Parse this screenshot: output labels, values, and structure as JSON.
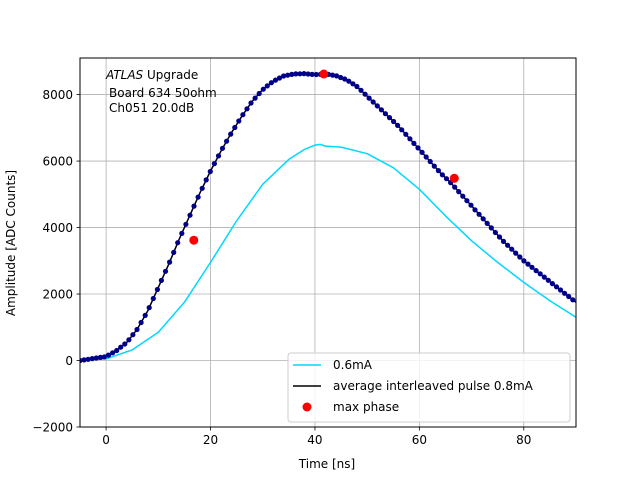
{
  "chart_data": {
    "type": "line",
    "xlabel": "Time [ns]",
    "ylabel": "Amplitude [ADC Counts]",
    "xlim": [
      -5,
      90
    ],
    "ylim": [
      -2000,
      9100
    ],
    "xticks": [
      0,
      20,
      40,
      60,
      80
    ],
    "yticks": [
      -2000,
      0,
      2000,
      4000,
      6000,
      8000
    ],
    "grid": true,
    "legend_position": "lower-right",
    "annotation": {
      "italic": "ATLAS",
      "line1_rest": " Upgrade",
      "line2": "Board 634 50ohm",
      "line3": "Ch051 20.0dB"
    },
    "series": [
      {
        "name": "0.6mA",
        "style": "line",
        "color": "#00d8ff",
        "x": [
          -5,
          0,
          5,
          10,
          15,
          20,
          25,
          30,
          35,
          38,
          40,
          41,
          42,
          45,
          50,
          55,
          60,
          65,
          70,
          75,
          80,
          85,
          90
        ],
        "y": [
          0,
          50,
          320,
          850,
          1750,
          2950,
          4200,
          5300,
          6050,
          6350,
          6480,
          6500,
          6450,
          6420,
          6220,
          5800,
          5150,
          4350,
          3600,
          2950,
          2350,
          1800,
          1300
        ]
      },
      {
        "name": "average interleaved pulse 0.8mA",
        "style": "line-with-markers",
        "color": "#000000",
        "marker_color": "#00008b",
        "x": [
          -5,
          0,
          2,
          4,
          6,
          8,
          10,
          12,
          14,
          16,
          18,
          20,
          22,
          24,
          26,
          28,
          30,
          32,
          34,
          36,
          38,
          40,
          42,
          44,
          46,
          48,
          50,
          52,
          54,
          56,
          58,
          60,
          62,
          64,
          66,
          68,
          70,
          72,
          74,
          76,
          78,
          80,
          82,
          84,
          86,
          88,
          90
        ],
        "y": [
          0,
          120,
          300,
          550,
          950,
          1500,
          2200,
          2900,
          3650,
          4350,
          5050,
          5700,
          6300,
          6850,
          7350,
          7800,
          8150,
          8400,
          8560,
          8620,
          8630,
          8600,
          8620,
          8570,
          8450,
          8250,
          7950,
          7650,
          7350,
          7050,
          6700,
          6350,
          6000,
          5650,
          5350,
          5000,
          4650,
          4300,
          3950,
          3600,
          3300,
          3000,
          2750,
          2500,
          2250,
          2000,
          1750
        ]
      },
      {
        "name": "max phase",
        "style": "markers",
        "color": "#ff0000",
        "x": [
          16.8,
          41.7,
          66.7
        ],
        "y": [
          3620,
          8620,
          5480
        ]
      }
    ]
  }
}
